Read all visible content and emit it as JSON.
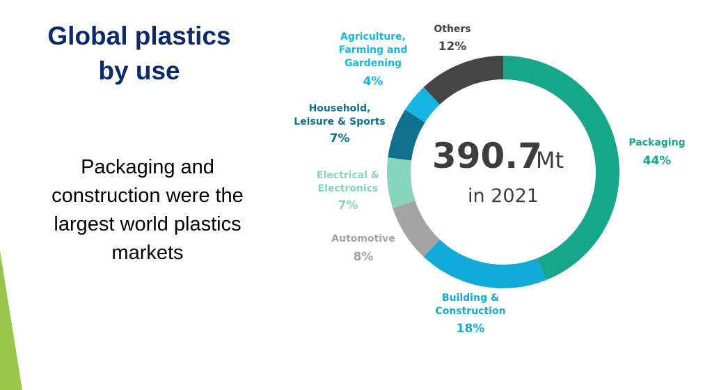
{
  "chart_data": {
    "type": "donut",
    "title": "Global plastics\nby use",
    "subtitle": "Packaging and\nconstruction were the\nlargest world plastics\nmarkets",
    "total": 390.7,
    "total_unit": "Mt",
    "total_caption": "in 2021",
    "categories": [
      "Packaging",
      "Building &\nConstruction",
      "Automotive",
      "Electrical &\nElectronics",
      "Household,\nLeisure & Sports",
      "Agriculture,\nFarming and\nGardening",
      "Others"
    ],
    "values": [
      44,
      18,
      8,
      7,
      7,
      4,
      12
    ],
    "value_labels": [
      "44%",
      "18%",
      "8%",
      "7%",
      "7%",
      "4%",
      "12%"
    ],
    "colors": [
      "#17a68a",
      "#12a9d8",
      "#a3a3a3",
      "#86d4bd",
      "#12708c",
      "#17b6e2",
      "#454545"
    ],
    "label_colors": [
      "#17a68a",
      "#12a9d8",
      "#a3a3a3",
      "#86d4bd",
      "#12708c",
      "#17b6e2",
      "#454545"
    ]
  }
}
